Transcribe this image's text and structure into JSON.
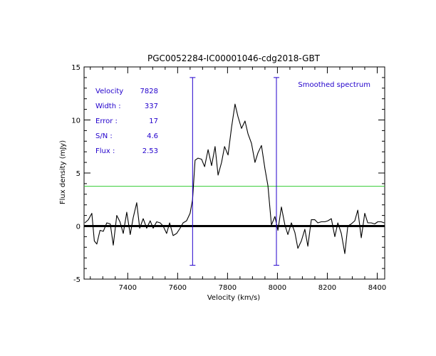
{
  "chart_data": {
    "type": "line",
    "title": "PGC0052284-IC00001046-cdg2018-GBT",
    "xlabel": "Velocity (km/s)",
    "ylabel": "Flux density (mJy)",
    "xlim": [
      7225,
      8430
    ],
    "ylim": [
      -5,
      15
    ],
    "x_ticks": [
      7400,
      7600,
      7800,
      8000,
      8200,
      8400
    ],
    "y_ticks": [
      -5,
      0,
      5,
      10,
      15
    ],
    "x_minor_step": 50,
    "y_minor_step": 1,
    "grid": false,
    "legend_label": "Smoothed spectrum",
    "legend_position": "top-right",
    "stats": [
      {
        "label": "Velocity",
        "value": "7828"
      },
      {
        "label": "Width :",
        "value": "337"
      },
      {
        "label": "Error :",
        "value": "17"
      },
      {
        "label": "S/N :",
        "value": "4.6"
      },
      {
        "label": "Flux :",
        "value": "2.53"
      }
    ],
    "spectrum": {
      "color": "#000000",
      "x": [
        7228,
        7242,
        7256,
        7266,
        7276,
        7289,
        7302,
        7316,
        7330,
        7342,
        7356,
        7369,
        7382,
        7396,
        7410,
        7422,
        7436,
        7448,
        7462,
        7476,
        7490,
        7502,
        7516,
        7530,
        7542,
        7556,
        7568,
        7582,
        7596,
        7610,
        7622,
        7636,
        7650,
        7660,
        7670,
        7682,
        7696,
        7708,
        7722,
        7736,
        7750,
        7762,
        7776,
        7788,
        7802,
        7816,
        7830,
        7842,
        7856,
        7870,
        7882,
        7896,
        7910,
        7922,
        7936,
        7950,
        7962,
        7976,
        7990,
        8002,
        8016,
        8030,
        8042,
        8056,
        8070,
        8082,
        8096,
        8110,
        8122,
        8136,
        8150,
        8162,
        8176,
        8190,
        8202,
        8216,
        8230,
        8242,
        8256,
        8270,
        8282,
        8296,
        8310,
        8322,
        8336,
        8350,
        8362,
        8376,
        8390,
        8402,
        8416,
        8428
      ],
      "y": [
        0.3,
        0.6,
        1.2,
        -1.4,
        -1.7,
        -0.4,
        -0.5,
        0.3,
        0.2,
        -1.8,
        1.0,
        0.4,
        -0.7,
        1.3,
        -0.8,
        0.8,
        2.2,
        -0.2,
        0.7,
        -0.2,
        0.5,
        -0.2,
        0.4,
        0.3,
        0.0,
        -0.7,
        0.3,
        -0.9,
        -0.7,
        -0.2,
        0.3,
        0.5,
        1.2,
        2.5,
        6.2,
        6.4,
        6.3,
        5.6,
        7.2,
        5.7,
        7.5,
        4.8,
        6.0,
        7.5,
        6.7,
        9.3,
        11.5,
        10.3,
        9.2,
        9.9,
        8.7,
        7.8,
        6.0,
        6.9,
        7.6,
        5.4,
        3.8,
        0.1,
        0.9,
        -0.4,
        1.8,
        0.1,
        -0.8,
        0.3,
        -0.6,
        -2.1,
        -1.4,
        -0.3,
        -1.9,
        0.6,
        0.6,
        0.3,
        0.4,
        0.4,
        0.5,
        0.7,
        -1.0,
        0.3,
        -0.7,
        -2.6,
        0.0,
        0.2,
        0.5,
        1.5,
        -1.1,
        1.2,
        0.3,
        0.3,
        0.2,
        0.4,
        0.4,
        0.3
      ]
    },
    "baseline": {
      "y": 0,
      "color": "#000000"
    },
    "half_level": {
      "y": 3.75,
      "color": "#33cc33"
    },
    "markers": [
      {
        "x": 7660,
        "y_top": 14.0,
        "y_bottom": -3.7,
        "color": "#2200cc"
      },
      {
        "x": 7996,
        "y_top": 14.0,
        "y_bottom": -3.7,
        "color": "#2200cc"
      }
    ],
    "colors": {
      "axes": "#000000",
      "stats_text": "#2200cc",
      "legend_text": "#2200cc"
    }
  }
}
